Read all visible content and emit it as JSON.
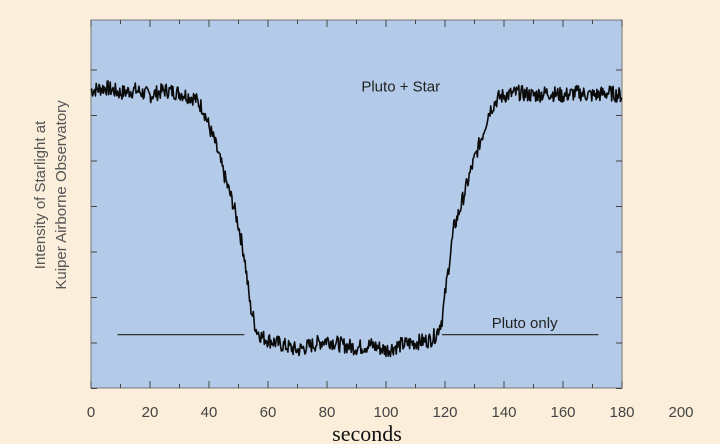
{
  "chart_data": {
    "type": "line",
    "title": "",
    "xlabel": "seconds",
    "ylabel_lines": [
      "Intensity of Starlight at",
      "Kuiper Airborne Observatory"
    ],
    "xlim": [
      0,
      180
    ],
    "xticks": [
      0,
      20,
      40,
      60,
      80,
      100,
      120,
      140,
      160,
      180,
      200
    ],
    "ylim": [
      0,
      1.1
    ],
    "grid": false,
    "legend": "none",
    "colors": {
      "page_background": "#fbefdc",
      "plot_background": "#b3cbe8",
      "signal": "#0b0b0b",
      "reference_line": "#333333"
    },
    "annotations": [
      {
        "text": "Pluto + Star",
        "x": 105,
        "y": 0.975
      },
      {
        "text": "Pluto only",
        "x": 147,
        "y": 0.065
      }
    ],
    "reference_line": {
      "label": "Pluto only",
      "y": 0.04,
      "segments": [
        [
          9,
          52
        ],
        [
          119,
          172
        ]
      ]
    },
    "series": [
      {
        "x": [
          0,
          5,
          10,
          15,
          20,
          25,
          30,
          35,
          38,
          40,
          42,
          44,
          46,
          48,
          50,
          52,
          54,
          56,
          58,
          60,
          65,
          70,
          75,
          80,
          85,
          90,
          95,
          100,
          105,
          110,
          115,
          117,
          119,
          121,
          123,
          125,
          127,
          129,
          131,
          133,
          135,
          138,
          140,
          145,
          150,
          155,
          160,
          165,
          170,
          175,
          180
        ],
        "y": [
          0.98,
          0.99,
          0.97,
          0.98,
          0.96,
          0.98,
          0.97,
          0.95,
          0.91,
          0.84,
          0.78,
          0.7,
          0.62,
          0.55,
          0.46,
          0.34,
          0.15,
          0.06,
          0.03,
          0.02,
          0.0,
          -0.02,
          0.0,
          0.02,
          0.0,
          -0.01,
          0.0,
          -0.02,
          0.0,
          0.01,
          0.02,
          0.04,
          0.1,
          0.28,
          0.45,
          0.52,
          0.6,
          0.68,
          0.75,
          0.82,
          0.9,
          0.95,
          0.96,
          0.97,
          0.96,
          0.97,
          0.96,
          0.97,
          0.96,
          0.97,
          0.96
        ]
      }
    ]
  }
}
